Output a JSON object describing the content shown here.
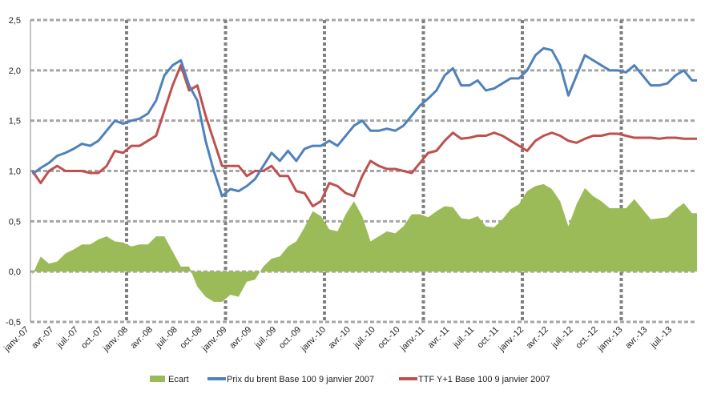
{
  "chart_data": {
    "type": "line",
    "title": "",
    "xlabel": "",
    "ylabel": "",
    "ylim": [
      -0.5,
      2.5
    ],
    "yticks": [
      "2,5",
      "2,0",
      "1,5",
      "1,0",
      "0,5",
      "0,0",
      "-0,5"
    ],
    "ytick_values": [
      2.5,
      2.0,
      1.5,
      1.0,
      0.5,
      0.0,
      -0.5
    ],
    "xticks": [
      "janv.-07",
      "avr.-07",
      "juil.-07",
      "oct.-07",
      "janv.-08",
      "avr.-08",
      "juil.-08",
      "oct.-08",
      "janv.-09",
      "avr.-09",
      "juil.-09",
      "oct.-09",
      "janv.-10",
      "avr.-10",
      "juil.-10",
      "oct.-10",
      "janv.-11",
      "avr.-11",
      "juil.-11",
      "oct.-11",
      "janv.-12",
      "avr.-12",
      "juil.-12",
      "oct.-12",
      "janv.-13",
      "avr.-13",
      "juil.-13"
    ],
    "grid": "horizontal dashed, vertical dashed at each January",
    "legend_position": "bottom",
    "x_unit": "months since janv. 2007",
    "series": [
      {
        "name": "Ecart",
        "type": "area",
        "color": "#9bbb59",
        "values": [
          -0.03,
          0.15,
          0.08,
          0.1,
          0.18,
          0.22,
          0.27,
          0.27,
          0.32,
          0.35,
          0.3,
          0.29,
          0.25,
          0.27,
          0.27,
          0.35,
          0.35,
          0.2,
          0.05,
          0.05,
          -0.15,
          -0.25,
          -0.3,
          -0.3,
          -0.23,
          -0.25,
          -0.1,
          -0.08,
          0.05,
          0.13,
          0.15,
          0.25,
          0.3,
          0.44,
          0.6,
          0.55,
          0.42,
          0.4,
          0.57,
          0.7,
          0.55,
          0.3,
          0.35,
          0.4,
          0.38,
          0.45,
          0.57,
          0.57,
          0.54,
          0.6,
          0.65,
          0.64,
          0.53,
          0.52,
          0.55,
          0.45,
          0.44,
          0.52,
          0.62,
          0.67,
          0.8,
          0.85,
          0.87,
          0.82,
          0.7,
          0.45,
          0.67,
          0.83,
          0.75,
          0.7,
          0.63,
          0.63,
          0.63,
          0.72,
          0.62,
          0.52,
          0.53,
          0.54,
          0.62,
          0.68,
          0.58,
          0.58
        ]
      },
      {
        "name": "Prix du brent Base 100 9 janvier 2007",
        "type": "line",
        "color": "#4f81bd",
        "values": [
          0.97,
          1.03,
          1.08,
          1.15,
          1.18,
          1.22,
          1.27,
          1.25,
          1.3,
          1.4,
          1.5,
          1.47,
          1.5,
          1.52,
          1.57,
          1.7,
          1.95,
          2.05,
          2.1,
          1.85,
          1.7,
          1.3,
          1.0,
          0.75,
          0.82,
          0.8,
          0.85,
          0.92,
          1.05,
          1.18,
          1.1,
          1.2,
          1.1,
          1.22,
          1.25,
          1.25,
          1.3,
          1.25,
          1.35,
          1.45,
          1.5,
          1.4,
          1.4,
          1.42,
          1.4,
          1.45,
          1.55,
          1.65,
          1.72,
          1.8,
          1.95,
          2.02,
          1.85,
          1.85,
          1.9,
          1.8,
          1.82,
          1.87,
          1.92,
          1.92,
          2.0,
          2.15,
          2.22,
          2.2,
          2.05,
          1.75,
          1.95,
          2.15,
          2.1,
          2.05,
          2.0,
          2.0,
          1.98,
          2.05,
          1.95,
          1.85,
          1.85,
          1.87,
          1.95,
          2.0,
          1.9,
          1.9
        ]
      },
      {
        "name": "TTF Y+1 Base 100 9 janvier 2007",
        "type": "line",
        "color": "#c0504d",
        "values": [
          1.0,
          0.88,
          1.0,
          1.05,
          1.0,
          1.0,
          1.0,
          0.98,
          0.98,
          1.05,
          1.2,
          1.18,
          1.25,
          1.25,
          1.3,
          1.35,
          1.6,
          1.85,
          2.05,
          1.8,
          1.85,
          1.55,
          1.3,
          1.05,
          1.05,
          1.05,
          0.95,
          1.0,
          1.0,
          1.05,
          0.95,
          0.95,
          0.8,
          0.78,
          0.65,
          0.7,
          0.88,
          0.85,
          0.78,
          0.75,
          0.95,
          1.1,
          1.05,
          1.02,
          1.02,
          1.0,
          0.98,
          1.08,
          1.18,
          1.2,
          1.3,
          1.38,
          1.32,
          1.33,
          1.35,
          1.35,
          1.38,
          1.35,
          1.3,
          1.25,
          1.2,
          1.3,
          1.35,
          1.38,
          1.35,
          1.3,
          1.28,
          1.32,
          1.35,
          1.35,
          1.37,
          1.37,
          1.35,
          1.33,
          1.33,
          1.33,
          1.32,
          1.33,
          1.33,
          1.32,
          1.32,
          1.32
        ]
      }
    ]
  }
}
